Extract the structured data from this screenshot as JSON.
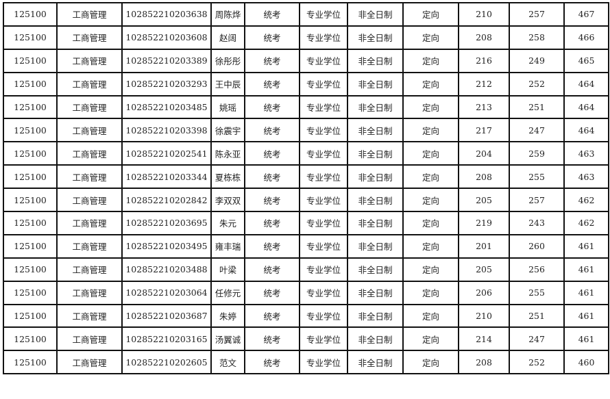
{
  "table": {
    "rows": [
      [
        "125100",
        "工商管理",
        "102852210203638",
        "周陈烨",
        "统考",
        "专业学位",
        "非全日制",
        "定向",
        "210",
        "257",
        "467"
      ],
      [
        "125100",
        "工商管理",
        "102852210203608",
        "赵阔",
        "统考",
        "专业学位",
        "非全日制",
        "定向",
        "208",
        "258",
        "466"
      ],
      [
        "125100",
        "工商管理",
        "102852210203389",
        "徐彤彤",
        "统考",
        "专业学位",
        "非全日制",
        "定向",
        "216",
        "249",
        "465"
      ],
      [
        "125100",
        "工商管理",
        "102852210203293",
        "王中辰",
        "统考",
        "专业学位",
        "非全日制",
        "定向",
        "212",
        "252",
        "464"
      ],
      [
        "125100",
        "工商管理",
        "102852210203485",
        "姚瑶",
        "统考",
        "专业学位",
        "非全日制",
        "定向",
        "213",
        "251",
        "464"
      ],
      [
        "125100",
        "工商管理",
        "102852210203398",
        "徐震宇",
        "统考",
        "专业学位",
        "非全日制",
        "定向",
        "217",
        "247",
        "464"
      ],
      [
        "125100",
        "工商管理",
        "102852210202541",
        "陈永亚",
        "统考",
        "专业学位",
        "非全日制",
        "定向",
        "204",
        "259",
        "463"
      ],
      [
        "125100",
        "工商管理",
        "102852210203344",
        "夏栋栋",
        "统考",
        "专业学位",
        "非全日制",
        "定向",
        "208",
        "255",
        "463"
      ],
      [
        "125100",
        "工商管理",
        "102852210202842",
        "李双双",
        "统考",
        "专业学位",
        "非全日制",
        "定向",
        "205",
        "257",
        "462"
      ],
      [
        "125100",
        "工商管理",
        "102852210203695",
        "朱元",
        "统考",
        "专业学位",
        "非全日制",
        "定向",
        "219",
        "243",
        "462"
      ],
      [
        "125100",
        "工商管理",
        "102852210203495",
        "雍丰瑞",
        "统考",
        "专业学位",
        "非全日制",
        "定向",
        "201",
        "260",
        "461"
      ],
      [
        "125100",
        "工商管理",
        "102852210203488",
        "叶梁",
        "统考",
        "专业学位",
        "非全日制",
        "定向",
        "205",
        "256",
        "461"
      ],
      [
        "125100",
        "工商管理",
        "102852210203064",
        "任修元",
        "统考",
        "专业学位",
        "非全日制",
        "定向",
        "206",
        "255",
        "461"
      ],
      [
        "125100",
        "工商管理",
        "102852210203687",
        "朱婷",
        "统考",
        "专业学位",
        "非全日制",
        "定向",
        "210",
        "251",
        "461"
      ],
      [
        "125100",
        "工商管理",
        "102852210203165",
        "汤翼诚",
        "统考",
        "专业学位",
        "非全日制",
        "定向",
        "214",
        "247",
        "461"
      ],
      [
        "125100",
        "工商管理",
        "102852210202605",
        "范文",
        "统考",
        "专业学位",
        "非全日制",
        "定向",
        "208",
        "252",
        "460"
      ]
    ]
  }
}
